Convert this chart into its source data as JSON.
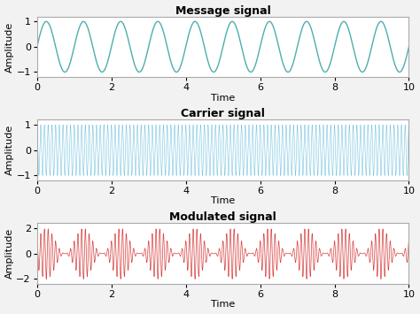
{
  "t_start": 0,
  "t_end": 10,
  "num_points": 10000,
  "message_freq": 1.0,
  "carrier_freq": 10.0,
  "message_amplitude": 1.0,
  "carrier_amplitude": 1.0,
  "modulation_index": 1.0,
  "message_color": "#4daeae",
  "carrier_color": "#77c4e0",
  "modulated_color": "#d94040",
  "title1": "Message signal",
  "title2": "Carrier signal",
  "title3": "Modulated signal",
  "xlabel": "Time",
  "ylabel": "Amplitude",
  "xlim": [
    0,
    10
  ],
  "ylim1": [
    -1.2,
    1.2
  ],
  "ylim2": [
    -1.2,
    1.2
  ],
  "ylim3": [
    -2.4,
    2.4
  ],
  "xticks": [
    0,
    2,
    4,
    6,
    8,
    10
  ],
  "yticks1": [
    -1,
    0,
    1
  ],
  "yticks2": [
    -1,
    0,
    1
  ],
  "yticks3": [
    -2,
    0,
    2
  ],
  "background_color": "#ffffff",
  "fig_facecolor": "#f2f2f2",
  "title_fontsize": 9,
  "label_fontsize": 8,
  "tick_fontsize": 8,
  "linewidth_msg": 1.0,
  "linewidth_carr": 0.4,
  "linewidth_mod": 0.5,
  "spine_color": "#aaaaaa"
}
